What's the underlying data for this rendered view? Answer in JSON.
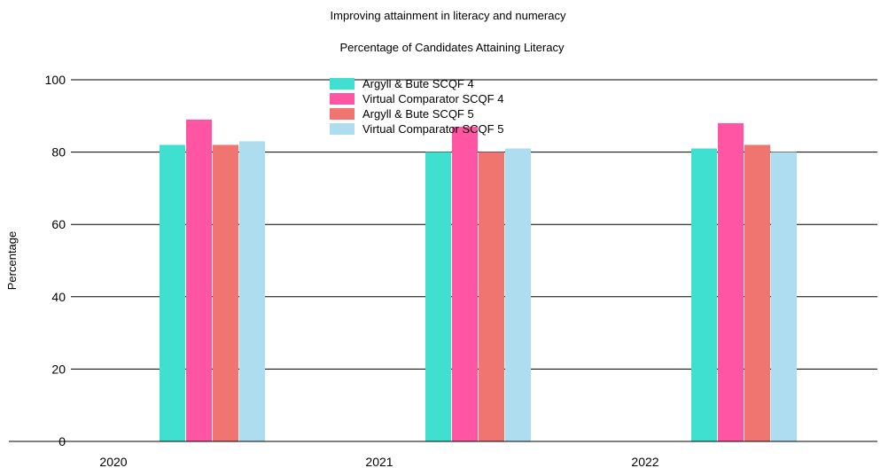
{
  "page_title": "Improving attainment in literacy and numeracy",
  "chart_data": [
    {
      "type": "bar",
      "title": "Percentage of Candidates Attaining Literacy",
      "xlabel": "",
      "ylabel": "Percentage",
      "ylim": [
        0,
        100
      ],
      "yticks": [
        0,
        20,
        40,
        60,
        80,
        100
      ],
      "categories": [
        "2020",
        "2021",
        "2022"
      ],
      "legend_position": "top",
      "series": [
        {
          "name": "Argyll & Bute SCQF 4",
          "color": "#40E0D0",
          "values": [
            82,
            80,
            81
          ]
        },
        {
          "name": "Virtual Comparator SCQF 4",
          "color": "#FF55A3",
          "values": [
            89,
            87,
            88
          ]
        },
        {
          "name": "Argyll & Bute SCQF 5",
          "color": "#F07470",
          "values": [
            82,
            80,
            82
          ]
        },
        {
          "name": "Virtual Comparator SCQF 5",
          "color": "#ADDDEF",
          "values": [
            83,
            81,
            80
          ]
        }
      ]
    }
  ]
}
